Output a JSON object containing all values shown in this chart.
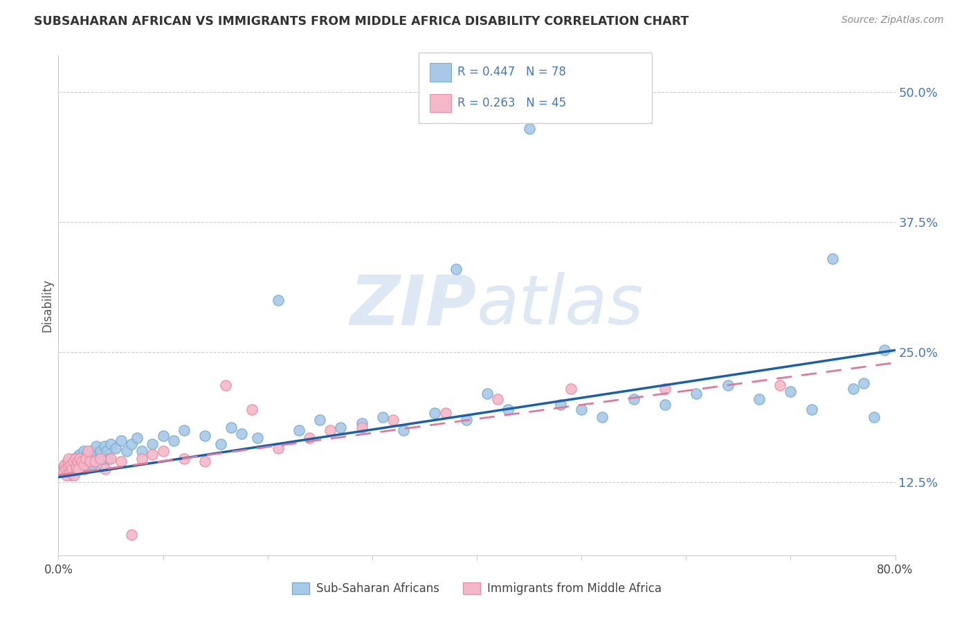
{
  "title": "SUBSAHARAN AFRICAN VS IMMIGRANTS FROM MIDDLE AFRICA DISABILITY CORRELATION CHART",
  "source": "Source: ZipAtlas.com",
  "ylabel": "Disability",
  "xlim": [
    0.0,
    0.8
  ],
  "ylim": [
    0.055,
    0.535
  ],
  "ytick_positions": [
    0.125,
    0.25,
    0.375,
    0.5
  ],
  "ytick_labels": [
    "12.5%",
    "25.0%",
    "37.5%",
    "50.0%"
  ],
  "blue_R": 0.447,
  "blue_N": 78,
  "pink_R": 0.263,
  "pink_N": 45,
  "blue_color": "#a8c8e8",
  "blue_edge_color": "#7aaed0",
  "pink_color": "#f4b8c8",
  "pink_edge_color": "#e890a8",
  "blue_line_color": "#1a5fa8",
  "pink_line_color": "#e07898",
  "watermark_color": "#dde8f4",
  "blue_scatter_x": [
    0.005,
    0.008,
    0.01,
    0.01,
    0.012,
    0.013,
    0.015,
    0.015,
    0.016,
    0.017,
    0.018,
    0.019,
    0.02,
    0.02,
    0.021,
    0.022,
    0.023,
    0.024,
    0.025,
    0.026,
    0.027,
    0.028,
    0.03,
    0.031,
    0.032,
    0.034,
    0.035,
    0.036,
    0.038,
    0.04,
    0.042,
    0.044,
    0.046,
    0.048,
    0.05,
    0.055,
    0.06,
    0.065,
    0.07,
    0.075,
    0.08,
    0.09,
    0.1,
    0.11,
    0.12,
    0.14,
    0.155,
    0.165,
    0.175,
    0.19,
    0.21,
    0.23,
    0.25,
    0.27,
    0.29,
    0.31,
    0.33,
    0.36,
    0.38,
    0.39,
    0.41,
    0.43,
    0.45,
    0.48,
    0.5,
    0.52,
    0.55,
    0.58,
    0.61,
    0.64,
    0.67,
    0.7,
    0.72,
    0.74,
    0.76,
    0.77,
    0.78,
    0.79
  ],
  "blue_scatter_y": [
    0.14,
    0.135,
    0.138,
    0.145,
    0.132,
    0.142,
    0.138,
    0.148,
    0.135,
    0.142,
    0.15,
    0.138,
    0.145,
    0.152,
    0.14,
    0.148,
    0.143,
    0.155,
    0.138,
    0.145,
    0.152,
    0.14,
    0.148,
    0.155,
    0.142,
    0.15,
    0.145,
    0.16,
    0.148,
    0.155,
    0.142,
    0.16,
    0.155,
    0.148,
    0.162,
    0.158,
    0.165,
    0.155,
    0.162,
    0.168,
    0.155,
    0.162,
    0.17,
    0.165,
    0.175,
    0.17,
    0.162,
    0.178,
    0.172,
    0.168,
    0.3,
    0.175,
    0.185,
    0.178,
    0.182,
    0.188,
    0.175,
    0.192,
    0.33,
    0.185,
    0.21,
    0.195,
    0.465,
    0.2,
    0.195,
    0.188,
    0.205,
    0.2,
    0.21,
    0.218,
    0.205,
    0.212,
    0.195,
    0.34,
    0.215,
    0.22,
    0.188,
    0.252
  ],
  "pink_scatter_x": [
    0.005,
    0.006,
    0.007,
    0.008,
    0.009,
    0.01,
    0.01,
    0.011,
    0.012,
    0.013,
    0.014,
    0.015,
    0.016,
    0.017,
    0.018,
    0.019,
    0.02,
    0.022,
    0.024,
    0.026,
    0.028,
    0.03,
    0.035,
    0.04,
    0.045,
    0.05,
    0.06,
    0.07,
    0.08,
    0.09,
    0.1,
    0.12,
    0.14,
    0.16,
    0.185,
    0.21,
    0.24,
    0.26,
    0.29,
    0.32,
    0.37,
    0.42,
    0.49,
    0.58,
    0.69
  ],
  "pink_scatter_y": [
    0.135,
    0.142,
    0.138,
    0.132,
    0.145,
    0.14,
    0.148,
    0.135,
    0.142,
    0.138,
    0.145,
    0.132,
    0.148,
    0.14,
    0.145,
    0.138,
    0.148,
    0.145,
    0.142,
    0.148,
    0.155,
    0.145,
    0.145,
    0.148,
    0.138,
    0.148,
    0.145,
    0.075,
    0.148,
    0.152,
    0.155,
    0.148,
    0.145,
    0.218,
    0.195,
    0.158,
    0.168,
    0.175,
    0.178,
    0.185,
    0.192,
    0.205,
    0.215,
    0.215,
    0.218
  ],
  "blue_line_x0": 0.0,
  "blue_line_y0": 0.13,
  "blue_line_x1": 0.8,
  "blue_line_y1": 0.252,
  "pink_line_x0": 0.0,
  "pink_line_y0": 0.132,
  "pink_line_x1": 0.8,
  "pink_line_y1": 0.24
}
